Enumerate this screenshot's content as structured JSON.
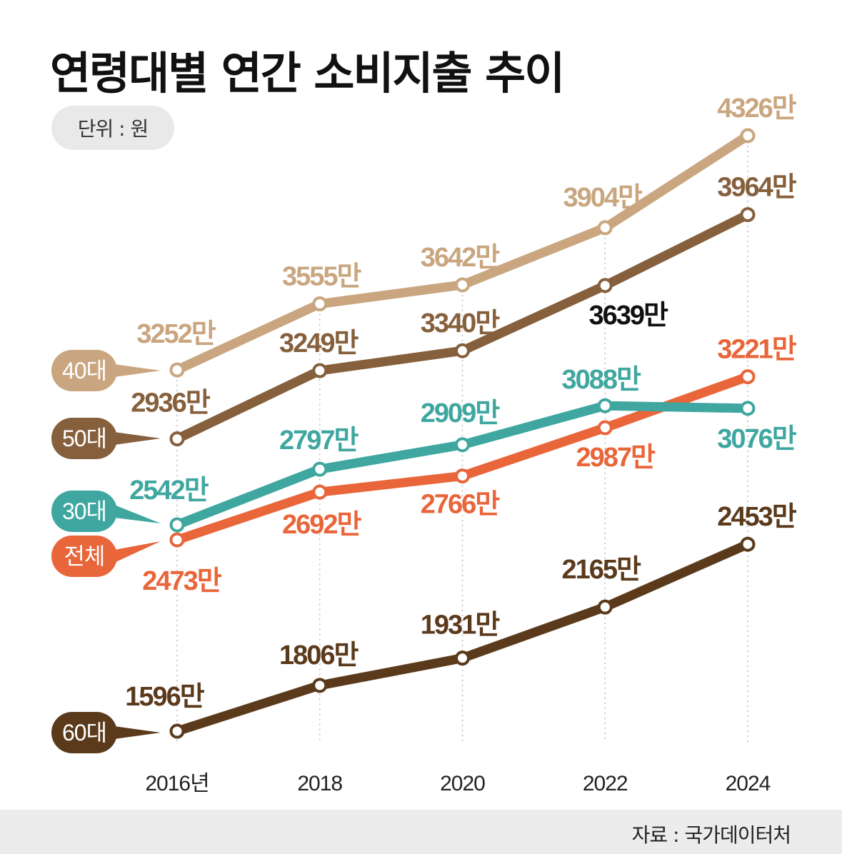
{
  "title": "연령대별 연간 소비지출 추이",
  "unit_label": "단위 : 원",
  "source": "자료 : 국가데이터처",
  "chart_data": {
    "type": "line",
    "title": "연령대별 연간 소비지출 추이",
    "unit": "원",
    "x": [
      2016,
      2018,
      2020,
      2022,
      2024
    ],
    "x_tick_labels": [
      "2016년",
      "2018",
      "2020",
      "2022",
      "2024"
    ],
    "value_suffix": "만",
    "ylim": [
      1596,
      4326
    ],
    "grid": "vertical dotted",
    "legend": "left",
    "series": [
      {
        "name": "40대",
        "color": "#c9a67f",
        "label_color": "#c9a67f",
        "values": [
          3252,
          3555,
          3642,
          3904,
          4326
        ]
      },
      {
        "name": "50대",
        "color": "#86603c",
        "label_color": "#86603c",
        "values": [
          2936,
          3249,
          3340,
          3639,
          3964
        ]
      },
      {
        "name": "30대",
        "color": "#3fa7a0",
        "label_color": "#3fa7a0",
        "values": [
          2542,
          2797,
          2909,
          3088,
          3076
        ]
      },
      {
        "name": "전체",
        "color": "#e9653a",
        "label_color": "#e9653a",
        "values": [
          2473,
          2692,
          2766,
          2987,
          3221
        ]
      },
      {
        "name": "60대",
        "color": "#5b3a1c",
        "label_color": "#5b3a1c",
        "values": [
          1596,
          1806,
          1931,
          2165,
          2453
        ]
      }
    ],
    "special_label_colors": {
      "50대": {
        "3": "#111111"
      }
    }
  }
}
